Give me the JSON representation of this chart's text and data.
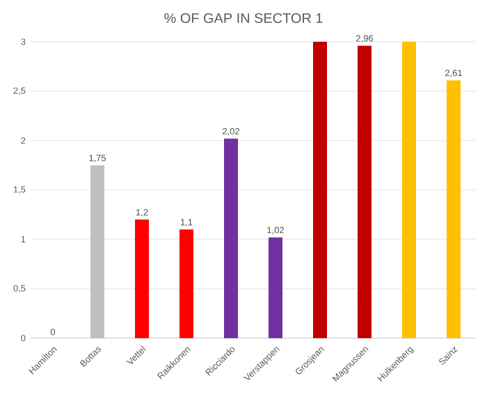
{
  "chart_data": {
    "type": "bar",
    "title": "% OF GAP IN SECTOR 1",
    "categories": [
      "Hamilton",
      "Bottas",
      "Vettel",
      "Raikkonen",
      "Ricciardo",
      "Verstappen",
      "Grosjean",
      "Magnussen",
      "Hulkenberg",
      "Sainz"
    ],
    "values": [
      0,
      1.75,
      1.2,
      1.1,
      2.02,
      1.02,
      3,
      2.96,
      3,
      2.61
    ],
    "value_labels": [
      "0",
      "1,75",
      "1,2",
      "1,1",
      "2,02",
      "1,02",
      null,
      "2,96",
      null,
      "2,61"
    ],
    "colors": [
      "#bfbfbf",
      "#bfbfbf",
      "#ff0000",
      "#ff0000",
      "#7030a0",
      "#7030a0",
      "#c00000",
      "#c00000",
      "#ffc000",
      "#ffc000"
    ],
    "ylim": [
      0,
      3
    ],
    "yticks": [
      0,
      {
        "value": 0.5,
        "label": "0,5"
      },
      1,
      {
        "value": 1.5,
        "label": "1,5"
      },
      2,
      {
        "value": 2.5,
        "label": "2,5"
      },
      3
    ],
    "grid": "y"
  }
}
